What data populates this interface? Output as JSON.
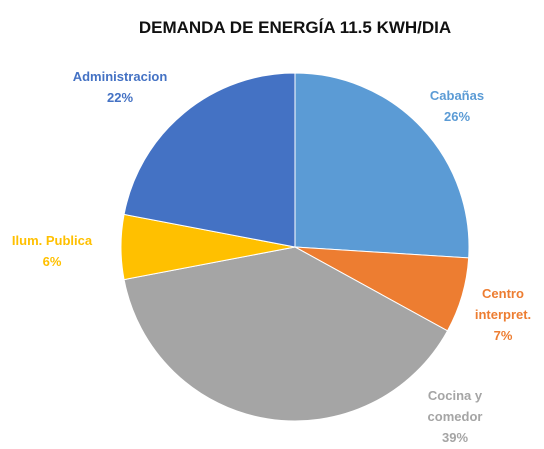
{
  "chart_data": {
    "type": "pie",
    "title": "DEMANDA DE ENERGÍA 11.5 KWH/DIA",
    "categories": [
      "Cabañas",
      "Centro interpret.",
      "Cocina y comedor",
      "Ilum. Publica",
      "Administracion"
    ],
    "values": [
      26,
      7,
      39,
      6,
      22
    ],
    "value_labels": [
      "26%",
      "7%",
      "39%",
      "6%",
      "22%"
    ],
    "colors": [
      "#5b9bd5",
      "#ed7d31",
      "#a5a5a5",
      "#ffc000",
      "#4472c4"
    ]
  }
}
